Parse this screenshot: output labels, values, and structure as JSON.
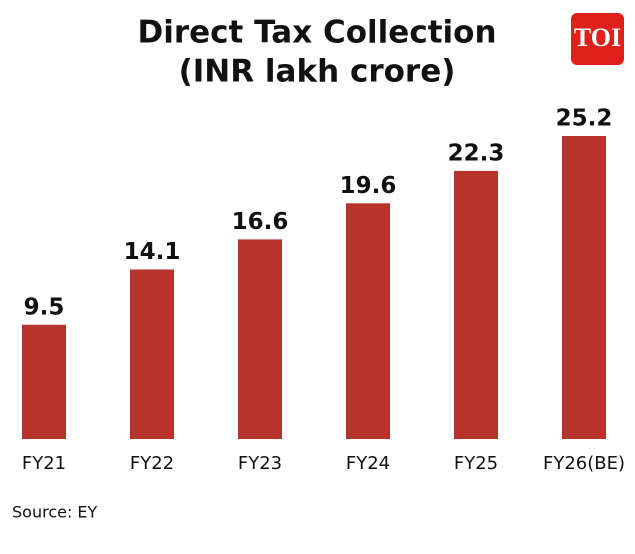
{
  "chart_data": {
    "type": "bar",
    "title": "Direct Tax Collection",
    "subtitle": "(INR lakh crore)",
    "categories": [
      "FY21",
      "FY22",
      "FY23",
      "FY24",
      "FY25",
      "FY26(BE)"
    ],
    "values": [
      9.5,
      14.1,
      16.6,
      19.6,
      22.3,
      25.2
    ],
    "color": "#b5332a",
    "source": "Source: EY",
    "logo": "TOI"
  }
}
